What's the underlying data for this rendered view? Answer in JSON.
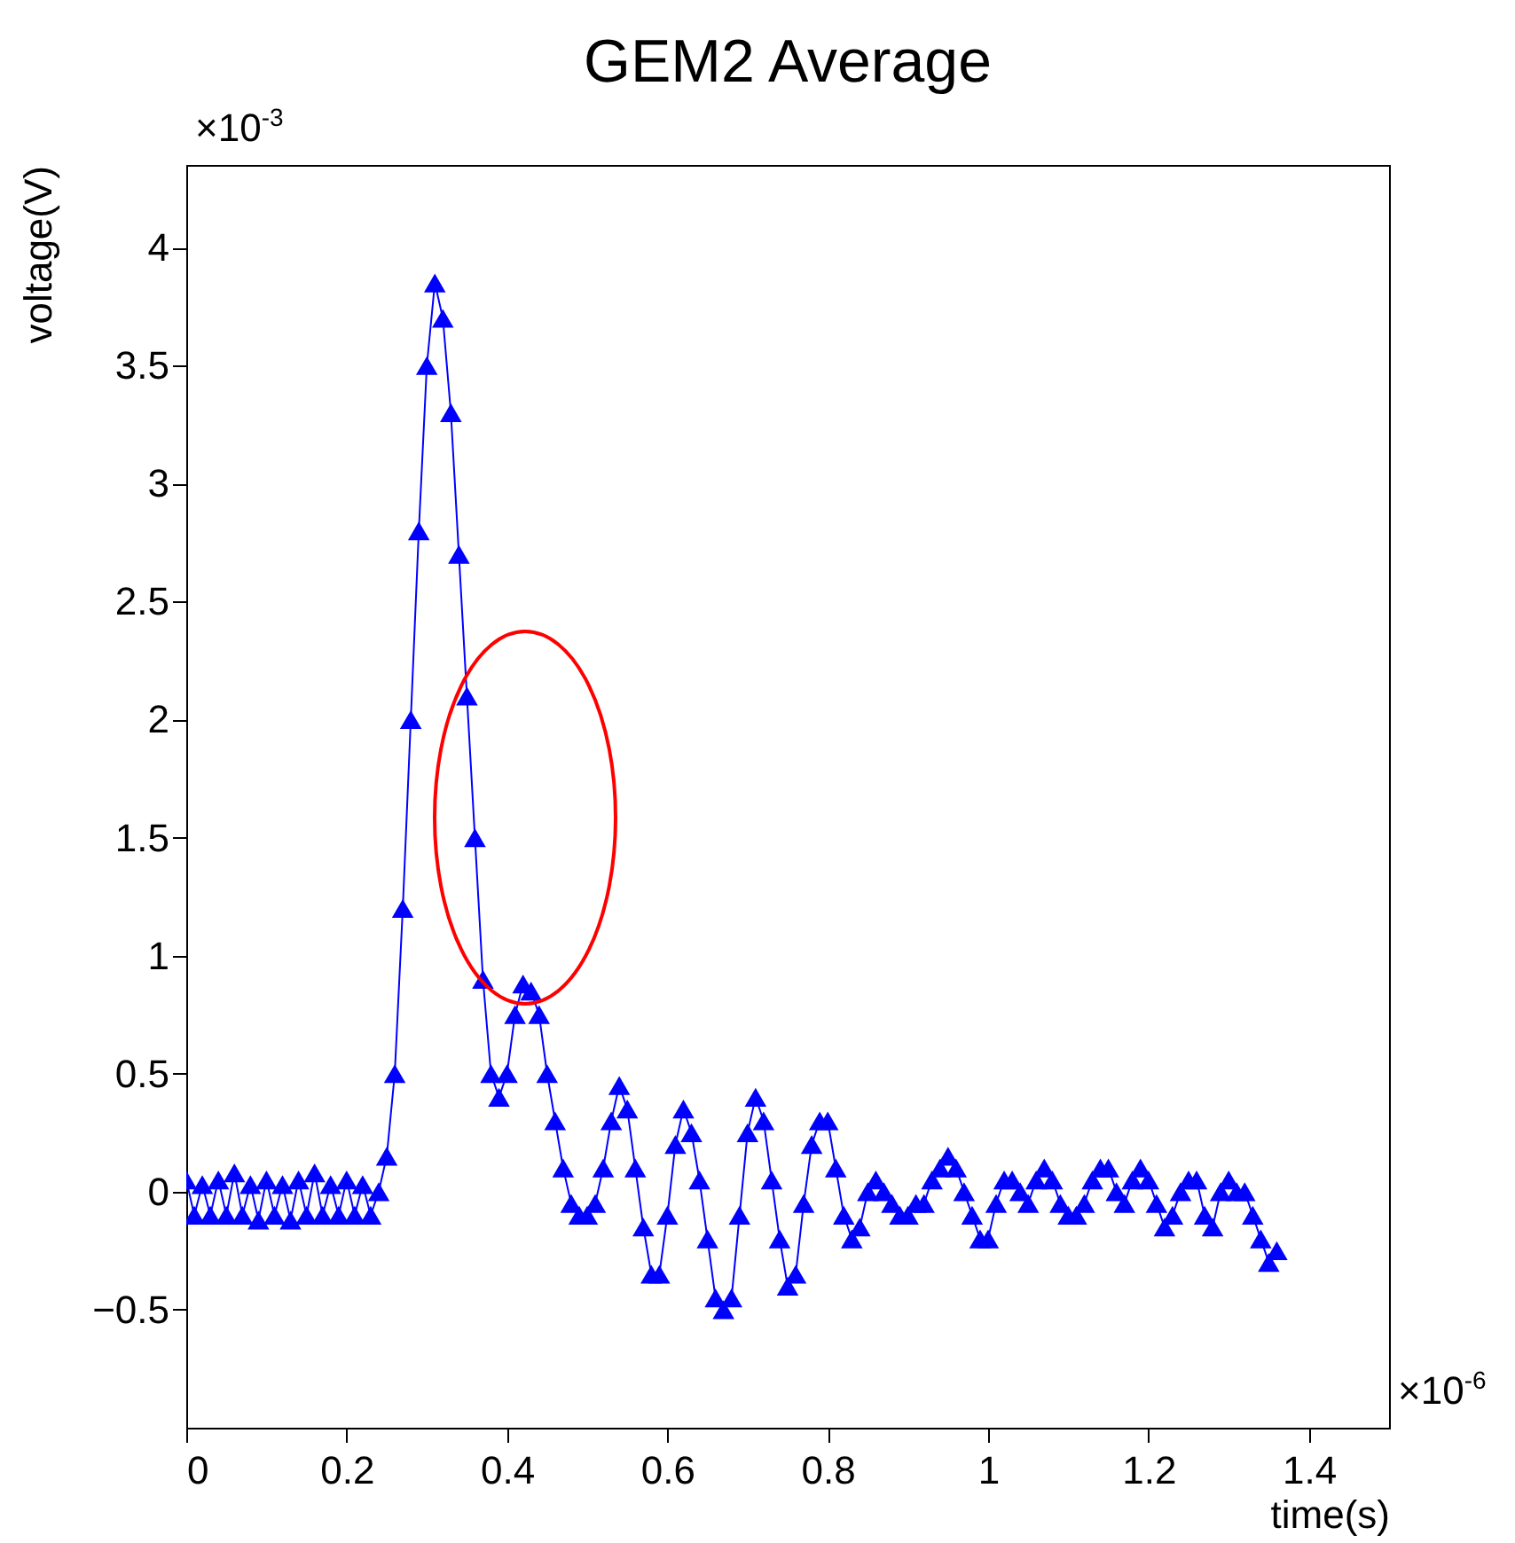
{
  "chart_data": {
    "type": "line",
    "title": "GEM2 Average",
    "xlabel": "time(s)",
    "ylabel": "voltage(V)",
    "annotations": [
      "×10$^{-3}$",
      "×10$^{-6}$"
    ],
    "xlim": [
      0,
      1.5
    ],
    "xticks": [
      0,
      0.2,
      0.4,
      0.6,
      0.8,
      1,
      1.2,
      1.4
    ],
    "ylim": [
      -1,
      4.35
    ],
    "yticks": [
      -0.5,
      0,
      0.5,
      1,
      1.5,
      2,
      2.5,
      3,
      3.5,
      4
    ],
    "grid": false,
    "marker": "triangle",
    "line_style": "solid",
    "x": [
      0,
      0.01,
      0.02,
      0.03,
      0.04,
      0.05,
      0.06,
      0.07,
      0.08,
      0.09,
      0.1,
      0.11,
      0.12,
      0.13,
      0.14,
      0.15,
      0.16,
      0.17,
      0.18,
      0.19,
      0.2,
      0.21,
      0.22,
      0.23,
      0.24,
      0.25,
      0.26,
      0.27,
      0.28,
      0.29,
      0.3,
      0.31,
      0.32,
      0.33,
      0.34,
      0.35,
      0.36,
      0.37,
      0.38,
      0.39,
      0.4,
      0.41,
      0.42,
      0.43,
      0.44,
      0.45,
      0.46,
      0.47,
      0.48,
      0.49,
      0.5,
      0.51,
      0.52,
      0.53,
      0.54,
      0.55,
      0.56,
      0.57,
      0.58,
      0.59,
      0.6,
      0.61,
      0.62,
      0.63,
      0.64,
      0.65,
      0.66,
      0.67,
      0.68,
      0.69,
      0.7,
      0.71,
      0.72,
      0.73,
      0.74,
      0.75,
      0.76,
      0.77,
      0.78,
      0.79,
      0.8,
      0.81,
      0.82,
      0.83,
      0.84,
      0.85,
      0.86,
      0.87,
      0.88,
      0.89,
      0.9,
      0.91,
      0.92,
      0.93,
      0.94,
      0.95,
      0.96,
      0.97,
      0.98,
      0.99,
      1,
      1.01,
      1.02,
      1.03,
      1.04,
      1.05,
      1.06,
      1.07,
      1.08,
      1.09,
      1.1,
      1.11,
      1.12,
      1.13,
      1.14,
      1.15,
      1.16,
      1.17,
      1.18,
      1.19,
      1.2,
      1.21,
      1.22,
      1.23,
      1.24,
      1.25,
      1.26,
      1.27,
      1.28,
      1.29,
      1.3,
      1.31,
      1.32,
      1.33,
      1.34,
      1.35,
      1.36
    ],
    "series": [
      {
        "color": "#0000ff",
        "values": [
          0.05,
          -0.1,
          0.03,
          -0.1,
          0.05,
          -0.1,
          0.08,
          -0.1,
          0.03,
          -0.12,
          0.05,
          -0.1,
          0.03,
          -0.12,
          0.05,
          -0.1,
          0.08,
          -0.1,
          0.03,
          -0.1,
          0.05,
          -0.1,
          0.03,
          -0.1,
          0.0,
          0.15,
          0.5,
          1.2,
          2.0,
          2.8,
          3.5,
          3.85,
          3.7,
          3.3,
          2.7,
          2.1,
          1.5,
          0.9,
          0.5,
          0.4,
          0.5,
          0.75,
          0.88,
          0.85,
          0.75,
          0.5,
          0.3,
          0.1,
          -0.05,
          -0.1,
          -0.1,
          -0.05,
          0.1,
          0.3,
          0.45,
          0.35,
          0.1,
          -0.15,
          -0.35,
          -0.35,
          -0.1,
          0.2,
          0.35,
          0.25,
          0.05,
          -0.2,
          -0.45,
          -0.5,
          -0.45,
          -0.1,
          0.25,
          0.4,
          0.3,
          0.05,
          -0.2,
          -0.4,
          -0.35,
          -0.05,
          0.2,
          0.3,
          0.3,
          0.1,
          -0.1,
          -0.2,
          -0.15,
          0.0,
          0.05,
          0.0,
          -0.05,
          -0.1,
          -0.1,
          -0.05,
          -0.05,
          0.05,
          0.1,
          0.15,
          0.1,
          0.0,
          -0.1,
          -0.2,
          -0.2,
          -0.05,
          0.05,
          0.05,
          0.0,
          -0.05,
          0.05,
          0.1,
          0.05,
          -0.05,
          -0.1,
          -0.1,
          -0.05,
          0.05,
          0.1,
          0.1,
          0.0,
          -0.05,
          0.05,
          0.1,
          0.05,
          -0.05,
          -0.15,
          -0.1,
          0.0,
          0.05,
          0.05,
          -0.1,
          -0.15,
          0.0,
          0.05,
          0.0,
          0.0,
          -0.1,
          -0.2,
          -0.3,
          -0.25
        ]
      }
    ]
  }
}
